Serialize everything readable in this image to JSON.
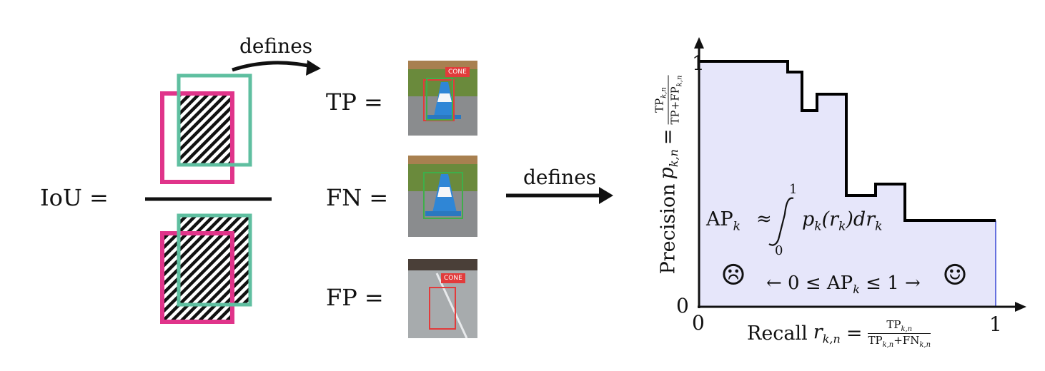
{
  "iou": {
    "label": "IoU =",
    "defines_label": "defines"
  },
  "outcomes": {
    "tp_label": "TP =",
    "fn_label": "FN =",
    "fp_label": "FP =",
    "cone_tag": "CONE",
    "defines_label": "defines"
  },
  "pr_curve": {
    "y_axis_label": "Precision",
    "y_var": "p",
    "y_sub": "k,n",
    "y_eq": "=",
    "y_frac_num": "TP",
    "y_frac_num_sub": "k,n",
    "y_frac_den": "TP+FP",
    "y_frac_den_sub": "k,n",
    "x_axis_label": "Recall",
    "x_var": "r",
    "x_sub": "k,n",
    "x_eq": "=",
    "x_frac_num": "TP",
    "x_frac_num_sub": "k,n",
    "x_frac_den_a": "TP",
    "x_frac_den_a_sub": "k,n",
    "x_frac_den_plus": "+FN",
    "x_frac_den_b_sub": "k,n",
    "tick_y_top": "1",
    "tick_y_bottom": "0",
    "tick_x_left": "0",
    "tick_x_right": "1",
    "ap_lhs": "AP",
    "ap_lhs_sub": "k",
    "ap_approx": "≈",
    "integral_upper": "1",
    "integral_lower": "0",
    "integrand": "p",
    "integrand_sub": "k",
    "integrand_rest_a": "(r",
    "integrand_rest_sub": "k",
    "integrand_rest_b": ")dr",
    "integrand_rest_sub2": "k",
    "range_text": "← 0 ≤ AP",
    "range_sub": "k",
    "range_text_b": "≤ 1 →",
    "sad_face": "☹",
    "happy_face": "☺",
    "fill_color": "#e6e6fa",
    "curve_color": "#000000"
  },
  "colors": {
    "magenta": "#e0348a",
    "teal": "#5fbfa0"
  }
}
